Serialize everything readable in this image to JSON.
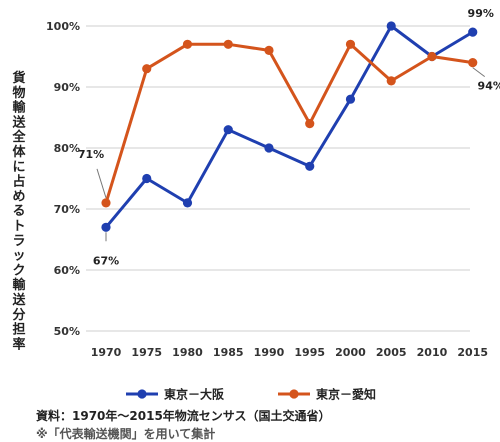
{
  "chart_data": {
    "type": "line",
    "title": "",
    "ylabel": "貨物輸送全体に占めるトラック輸送分担率",
    "xlabel": "",
    "categories": [
      "1970",
      "1975",
      "1980",
      "1985",
      "1990",
      "1995",
      "2000",
      "2005",
      "2010",
      "2015"
    ],
    "ylim": [
      50,
      100
    ],
    "yticks": [
      "50%",
      "60%",
      "70%",
      "80%",
      "90%",
      "100%"
    ],
    "grid": true,
    "legend_position": "bottom",
    "series": [
      {
        "name": "東京－大阪",
        "color": "#1f3fb0",
        "values": [
          67,
          75,
          71,
          83,
          80,
          77,
          88,
          100,
          95,
          99
        ]
      },
      {
        "name": "東京－愛知",
        "color": "#d4541c",
        "values": [
          71,
          93,
          97,
          97,
          96,
          84,
          97,
          91,
          95,
          94
        ]
      }
    ],
    "annotations": [
      {
        "series": 0,
        "index": 0,
        "text": "67%"
      },
      {
        "series": 1,
        "index": 0,
        "text": "71%"
      },
      {
        "series": 0,
        "index": 9,
        "text": "99%"
      },
      {
        "series": 1,
        "index": 9,
        "text": "94%"
      }
    ],
    "source": "資料：1970年～2015年物流センサス（国土交通省）",
    "note": "※「代表輸送機関」を用いて集計"
  }
}
